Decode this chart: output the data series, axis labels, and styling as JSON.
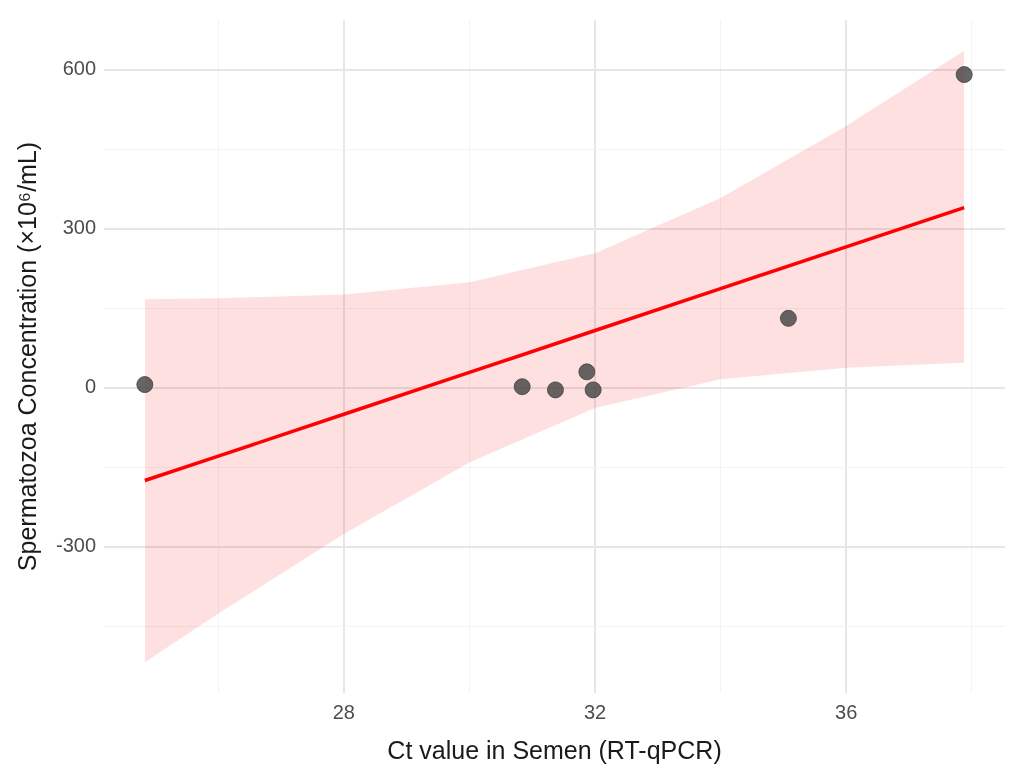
{
  "chart_data": {
    "type": "scatter",
    "xlabel": "Ct value in Semen (RT-qPCR)",
    "ylabel": "Spermatozoa Concentration (×10⁶/mL)",
    "series": [
      {
        "color": "#404040",
        "marker": "circle",
        "x": [
          24.83,
          30.84,
          31.37,
          31.87,
          31.97,
          35.08,
          37.88
        ],
        "values": [
          6,
          2,
          -4,
          30,
          -4,
          131,
          591
        ]
      },
      {
        "type": "line",
        "color": "#ff0000",
        "x": [
          24.83,
          26,
          28,
          30,
          32,
          34,
          36,
          37.88
        ],
        "values": [
          -175,
          -129,
          -50,
          29,
          108,
          187,
          266,
          340
        ],
        "lower": [
          -518,
          -426,
          -276,
          -141,
          -38,
          16,
          38,
          47
        ],
        "upper": [
          167,
          169,
          176,
          199,
          254,
          358,
          494,
          636
        ],
        "marker": "none"
      }
    ],
    "xlim": [
      24.18,
      38.53
    ],
    "ylim": [
      -576,
      694
    ],
    "xticks": [
      {
        "value": 26,
        "label": null
      },
      28,
      {
        "value": 30,
        "label": null
      },
      32,
      {
        "value": 34,
        "label": null
      },
      36,
      {
        "value": 38,
        "label": null
      }
    ],
    "yticks": [
      {
        "value": -450,
        "label": null
      },
      -300,
      {
        "value": -150,
        "label": null
      },
      0,
      {
        "value": 150,
        "label": null
      },
      300,
      {
        "value": 450,
        "label": null
      },
      600
    ],
    "grid": true,
    "legend": false
  }
}
